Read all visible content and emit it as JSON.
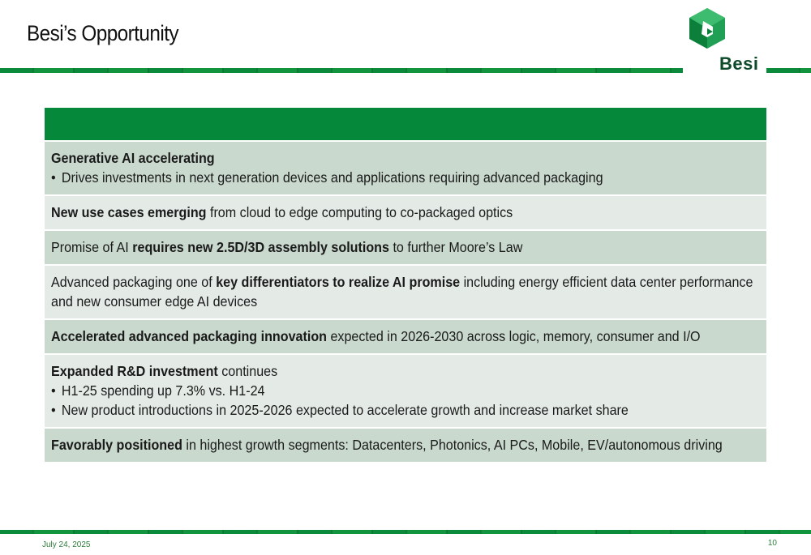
{
  "slide": {
    "title": "Besi’s Opportunity",
    "logo_text": "Besi",
    "footer_date": "July 24, 2025",
    "page_number": "10",
    "colors": {
      "brand_green": "#05883a",
      "row_dark": "#c9d9ce",
      "row_light": "#e4ebe6"
    }
  },
  "rows": [
    {
      "bold": "Generative AI accelerating",
      "text": "",
      "bullets": [
        "Drives investments in next generation devices and applications requiring advanced packaging"
      ]
    },
    {
      "bold": "New use cases emerging",
      "text": " from cloud to edge computing to co-packaged optics"
    },
    {
      "pre": "Promise of AI ",
      "bold": "requires new 2.5D/3D assembly solutions",
      "text": " to further Moore’s Law"
    },
    {
      "pre": "Advanced packaging one of ",
      "bold": "key differentiators to realize AI promise",
      "text": " including energy efficient data center performance and new consumer edge AI devices"
    },
    {
      "bold": "Accelerated advanced packaging innovation",
      "text": " expected in 2026-2030 across logic, memory, consumer and I/O"
    },
    {
      "bold": "Expanded R&D investment",
      "text": " continues",
      "bullets": [
        "H1-25 spending up 7.3% vs. H1-24",
        "New product introductions in 2025-2026 expected to accelerate growth and increase market share"
      ]
    },
    {
      "bold": "Favorably positioned",
      "text": " in highest growth segments: Datacenters, Photonics, AI PCs, Mobile, EV/autonomous driving"
    }
  ]
}
